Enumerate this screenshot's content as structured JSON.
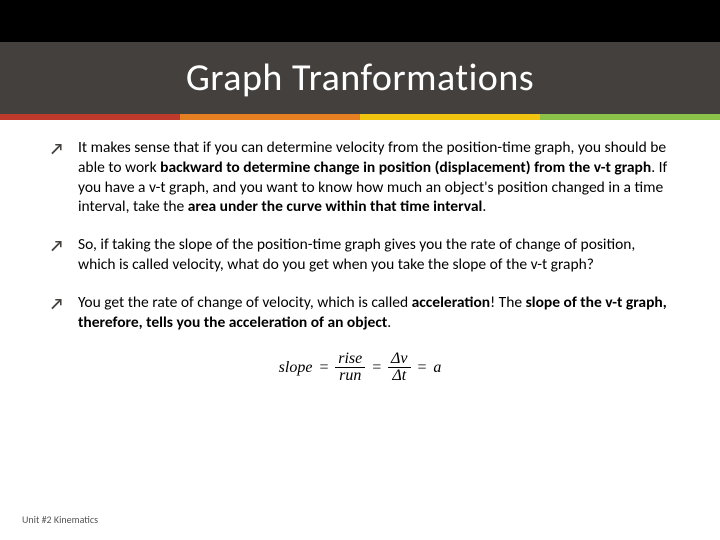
{
  "header": {
    "title": "Graph Tranformations",
    "accent_colors": [
      "#c03a2b",
      "#e67e22",
      "#f1c40f",
      "#8bc34a"
    ],
    "band_color": "#44403d",
    "top_color": "#000000"
  },
  "bullets": [
    {
      "html": "It makes sense that if you can determine velocity from the position-time graph, you should be able to work <b>backward to determine change in position (displacement) from the v-t graph</b>. If you have a v-t graph, and you want to know how much an object's position changed in a time interval, take the <b>area under the curve within that time interval</b>."
    },
    {
      "html": "So, if taking the slope of the position-time graph gives you the rate of change of position, which is called velocity, what do you get when you take the slope of the v-t graph?"
    },
    {
      "html": " You get the rate of change of velocity, which is called <b>acceleration</b>! The <b>slope of the v-t graph, therefore, tells you the acceleration of an object</b>."
    }
  ],
  "formula": {
    "lhs": "slope",
    "eq": "=",
    "frac1_num": "rise",
    "frac1_den": "run",
    "frac2_num": "Δv",
    "frac2_den": "Δt",
    "rhs": "a"
  },
  "footer": "Unit #2 Kinematics"
}
